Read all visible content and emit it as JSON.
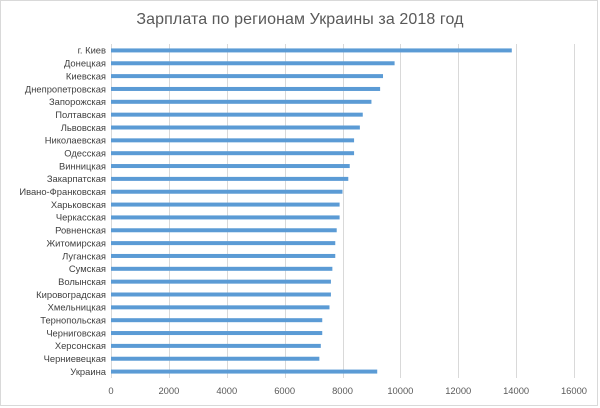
{
  "chart_data": {
    "type": "bar",
    "orientation": "horizontal",
    "title": "Зарплата по регионам Украины за 2018 год",
    "xlabel": "",
    "ylabel": "",
    "xlim": [
      0,
      16000
    ],
    "xticks": [
      0,
      2000,
      4000,
      6000,
      8000,
      10000,
      12000,
      14000,
      16000
    ],
    "grid": "vertical",
    "legend": "none",
    "bar_color": "#5b9bd5",
    "gridline_color": "#d9d9d9",
    "categories": [
      "г. Киев",
      "Донецкая",
      "Киевская",
      "Днепропетровская",
      "Запорожская",
      "Полтавская",
      "Львовская",
      "Николаевская",
      "Одесская",
      "Винницкая",
      "Закарпатская",
      "Ивано-Франковская",
      "Харьковская",
      "Черкасская",
      "Ровненская",
      "Житомирская",
      "Луганская",
      "Сумская",
      "Волынская",
      "Кировоградская",
      "Хмельницкая",
      "Тернопольская",
      "Черниговская",
      "Херсонская",
      "Черниевецкая",
      "Украина"
    ],
    "values": [
      13850,
      9800,
      9400,
      9300,
      9000,
      8700,
      8600,
      8400,
      8400,
      8250,
      8200,
      8000,
      7900,
      7900,
      7800,
      7750,
      7750,
      7650,
      7600,
      7600,
      7550,
      7300,
      7300,
      7250,
      7200,
      9200
    ]
  }
}
